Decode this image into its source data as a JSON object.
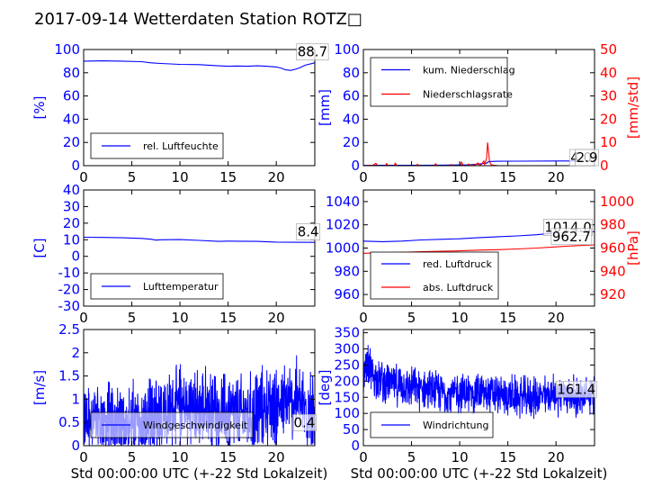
{
  "title": "2017-09-14 Wetterdaten Station ROTZ□",
  "colors": {
    "primary": "#0000ff",
    "secondary": "#ff0000",
    "axis": "#000000"
  },
  "chart_data": [
    {
      "id": "humidity",
      "type": "line",
      "xlim": [
        0,
        24
      ],
      "ylim": [
        0,
        100
      ],
      "xticks": [
        0,
        5,
        10,
        15,
        20
      ],
      "yticks": [
        0,
        20,
        40,
        60,
        80,
        100
      ],
      "ylabel": "[%]",
      "xlabel": "",
      "legend": {
        "position": "lower-left",
        "entries": [
          "rel. Luftfeuchte"
        ]
      },
      "annotations": [
        {
          "text": "88.7",
          "x": 22.2,
          "y": 94
        }
      ],
      "series": [
        {
          "name": "rel. Luftfeuchte",
          "color": "#0000ff",
          "axis": "left",
          "points": [
            [
              0,
              90
            ],
            [
              2,
              90.2
            ],
            [
              4,
              90
            ],
            [
              6,
              89.5
            ],
            [
              7,
              88.5
            ],
            [
              8,
              88
            ],
            [
              9,
              87.6
            ],
            [
              10,
              87.2
            ],
            [
              12,
              87
            ],
            [
              13,
              86.5
            ],
            [
              14,
              86
            ],
            [
              15,
              85.6
            ],
            [
              16,
              85.8
            ],
            [
              17,
              85.6
            ],
            [
              18,
              86
            ],
            [
              19,
              85.6
            ],
            [
              20,
              85
            ],
            [
              20.5,
              84
            ],
            [
              21,
              82.5
            ],
            [
              21.5,
              82
            ],
            [
              22,
              83
            ],
            [
              22.5,
              84.5
            ],
            [
              23,
              86.5
            ],
            [
              24,
              88.5
            ]
          ]
        }
      ]
    },
    {
      "id": "precipitation",
      "type": "line",
      "xlim": [
        0,
        24
      ],
      "ylim": [
        0,
        100
      ],
      "ylim2": [
        0,
        50
      ],
      "xticks": [
        0,
        5,
        10,
        15,
        20
      ],
      "yticks": [
        0,
        20,
        40,
        60,
        80,
        100
      ],
      "yticks2": [
        0,
        10,
        20,
        30,
        40,
        50
      ],
      "ylabel": "[mm]",
      "ylabel2": "[mm/std]",
      "xlabel": "",
      "legend": {
        "position": "upper-left",
        "entries": [
          "kum. Niederschlag",
          "Niederschlagsrate"
        ]
      },
      "annotations": [
        {
          "text": "4.0",
          "x": 21.5,
          "y": 4
        },
        {
          "text": "2.9",
          "x": 22.1,
          "y": 4
        }
      ],
      "series": [
        {
          "name": "kum. Niederschlag",
          "color": "#0000ff",
          "axis": "left",
          "points": [
            [
              0,
              0.2
            ],
            [
              2,
              0.3
            ],
            [
              4,
              0.3
            ],
            [
              6,
              0.4
            ],
            [
              8,
              0.5
            ],
            [
              10,
              0.6
            ],
            [
              11,
              0.8
            ],
            [
              12,
              1.4
            ],
            [
              12.8,
              2.2
            ],
            [
              13,
              3.6
            ],
            [
              14,
              3.8
            ],
            [
              16,
              3.9
            ],
            [
              20,
              4
            ],
            [
              24,
              4
            ]
          ]
        },
        {
          "name": "Niederschlagsrate",
          "color": "#ff0000",
          "axis": "right",
          "points": [
            [
              0,
              0
            ],
            [
              1,
              0.2
            ],
            [
              1.3,
              1
            ],
            [
              1.5,
              0
            ],
            [
              2.3,
              0
            ],
            [
              2.4,
              0.9
            ],
            [
              2.6,
              0
            ],
            [
              3.2,
              0
            ],
            [
              3.3,
              1.1
            ],
            [
              3.5,
              0
            ],
            [
              5.5,
              0
            ],
            [
              5.6,
              0.6
            ],
            [
              5.8,
              0
            ],
            [
              7.4,
              0
            ],
            [
              7.5,
              0.8
            ],
            [
              7.7,
              0
            ],
            [
              9,
              0
            ],
            [
              9.1,
              0.5
            ],
            [
              9.3,
              0
            ],
            [
              10,
              0
            ],
            [
              10.2,
              1.5
            ],
            [
              10.4,
              0
            ],
            [
              10.8,
              0
            ],
            [
              10.9,
              0.7
            ],
            [
              11.1,
              0
            ],
            [
              11.7,
              0.5
            ],
            [
              11.9,
              1.2
            ],
            [
              12.1,
              0
            ],
            [
              12.3,
              0.8
            ],
            [
              12.5,
              2
            ],
            [
              12.6,
              0.5
            ],
            [
              12.8,
              3.5
            ],
            [
              12.9,
              10
            ],
            [
              13,
              6
            ],
            [
              13.1,
              1.5
            ],
            [
              13.3,
              0.3
            ],
            [
              14,
              0
            ],
            [
              24,
              0
            ]
          ]
        }
      ]
    },
    {
      "id": "temperature",
      "type": "line",
      "xlim": [
        0,
        24
      ],
      "ylim": [
        -30,
        40
      ],
      "xticks": [
        0,
        5,
        10,
        15,
        20
      ],
      "yticks": [
        -30,
        -20,
        -10,
        0,
        10,
        20,
        30,
        40
      ],
      "ylabel": "[C]",
      "xlabel": "",
      "legend": {
        "position": "lower-left",
        "entries": [
          "Lufttemperatur"
        ]
      },
      "annotations": [
        {
          "text": "8.4",
          "x": 22.2,
          "y": 12
        }
      ],
      "series": [
        {
          "name": "Lufttemperatur",
          "color": "#0000ff",
          "axis": "left",
          "points": [
            [
              0,
              11.5
            ],
            [
              2,
              11.4
            ],
            [
              4,
              11.2
            ],
            [
              6,
              10.8
            ],
            [
              7,
              10.3
            ],
            [
              7.5,
              9.8
            ],
            [
              8,
              10
            ],
            [
              10,
              10.1
            ],
            [
              12,
              9.6
            ],
            [
              14,
              9
            ],
            [
              15,
              9.2
            ],
            [
              16,
              9.1
            ],
            [
              18,
              9
            ],
            [
              20,
              8.6
            ],
            [
              22,
              8.5
            ],
            [
              24,
              8.4
            ]
          ]
        }
      ]
    },
    {
      "id": "pressure",
      "type": "line",
      "xlim": [
        0,
        24
      ],
      "ylim": [
        950,
        1050
      ],
      "ylim2": [
        910,
        1010
      ],
      "xticks": [
        0,
        5,
        10,
        15,
        20
      ],
      "yticks": [
        960,
        980,
        1000,
        1020,
        1040
      ],
      "yticks2": [
        920,
        940,
        960,
        980,
        1000
      ],
      "ylabel": "",
      "ylabel2": "[hPa]",
      "xlabel": "",
      "legend": {
        "position": "lower-left",
        "entries": [
          "red. Luftdruck",
          "abs. Luftdruck"
        ]
      },
      "annotations": [
        {
          "text": "1014.0",
          "x": 18.8,
          "y": 1014
        },
        {
          "text": "962.7",
          "x": 19.6,
          "y": 1006
        }
      ],
      "series": [
        {
          "name": "red. Luftdruck",
          "color": "#0000ff",
          "axis": "left",
          "points": [
            [
              0,
              1006
            ],
            [
              2,
              1005.5
            ],
            [
              4,
              1006
            ],
            [
              6,
              1007
            ],
            [
              8,
              1007.5
            ],
            [
              10,
              1008
            ],
            [
              12,
              1009
            ],
            [
              14,
              1009.8
            ],
            [
              16,
              1010.5
            ],
            [
              18,
              1011.5
            ],
            [
              20,
              1013
            ],
            [
              22,
              1014.2
            ],
            [
              24,
              1014
            ]
          ]
        },
        {
          "name": "abs. Luftdruck",
          "color": "#ff0000",
          "axis": "right",
          "points": [
            [
              0,
              955.5
            ],
            [
              2,
              955.8
            ],
            [
              4,
              956.3
            ],
            [
              6,
              956.8
            ],
            [
              8,
              957.2
            ],
            [
              10,
              957.6
            ],
            [
              12,
              958.2
            ],
            [
              14,
              958.6
            ],
            [
              16,
              959.2
            ],
            [
              18,
              960
            ],
            [
              20,
              961
            ],
            [
              22,
              962
            ],
            [
              24,
              962.7
            ]
          ]
        }
      ]
    },
    {
      "id": "wind-speed",
      "type": "line",
      "xlim": [
        0,
        24
      ],
      "ylim": [
        0,
        2.5
      ],
      "xticks": [
        0,
        5,
        10,
        15,
        20
      ],
      "yticks": [
        0,
        0.5,
        1.0,
        1.5,
        2.0,
        2.5
      ],
      "ylabel": "[m/s]",
      "xlabel": "Std 00:00:00 UTC (+-22 Std Lokalzeit)",
      "legend": {
        "position": "lower-left",
        "entries": [
          "Windgeschwindigkeit"
        ]
      },
      "annotations": [
        {
          "text": "0.4",
          "x": 21.8,
          "y": 0.4
        }
      ],
      "series": [
        {
          "name": "Windgeschwindigkeit",
          "color": "#0000ff",
          "axis": "left",
          "noisy": true,
          "points": [
            [
              0,
              0.55
            ],
            [
              1,
              0.55
            ],
            [
              2,
              0.45
            ],
            [
              3,
              0.5
            ],
            [
              4,
              0.45
            ],
            [
              5,
              0.5
            ],
            [
              6,
              0.45
            ],
            [
              7,
              0.5
            ],
            [
              7.5,
              0.6
            ],
            [
              8,
              0.7
            ],
            [
              9,
              0.75
            ],
            [
              10,
              0.8
            ],
            [
              11,
              0.8
            ],
            [
              12,
              0.75
            ],
            [
              13,
              0.8
            ],
            [
              14,
              0.75
            ],
            [
              15,
              0.7
            ],
            [
              16,
              0.65
            ],
            [
              17,
              0.65
            ],
            [
              18,
              0.75
            ],
            [
              19,
              0.85
            ],
            [
              20,
              0.9
            ],
            [
              21,
              0.85
            ],
            [
              22,
              1.0
            ],
            [
              23,
              0.8
            ],
            [
              24,
              0.6
            ]
          ]
        }
      ]
    },
    {
      "id": "wind-direction",
      "type": "line",
      "xlim": [
        0,
        24
      ],
      "ylim": [
        0,
        360
      ],
      "xticks": [
        0,
        5,
        10,
        15,
        20
      ],
      "yticks": [
        0,
        50,
        100,
        150,
        200,
        250,
        300,
        350
      ],
      "ylabel": "[deg]",
      "xlabel": "Std 00:00:00 UTC (+-22 Std Lokalzeit)",
      "legend": {
        "position": "lower-left",
        "entries": [
          "Windrichtung"
        ]
      },
      "annotations": [
        {
          "text": "161.4",
          "x": 20.1,
          "y": 161
        }
      ],
      "series": [
        {
          "name": "Windrichtung",
          "color": "#0000ff",
          "axis": "left",
          "noisy": true,
          "points": [
            [
              0,
              200
            ],
            [
              0.5,
              250
            ],
            [
              1,
              220
            ],
            [
              2,
              200
            ],
            [
              3,
              190
            ],
            [
              4,
              185
            ],
            [
              5,
              180
            ],
            [
              6,
              175
            ],
            [
              7,
              170
            ],
            [
              8,
              165
            ],
            [
              9,
              160
            ],
            [
              10,
              165
            ],
            [
              11,
              160
            ],
            [
              12,
              165
            ],
            [
              13,
              160
            ],
            [
              14,
              155
            ],
            [
              15,
              155
            ],
            [
              16,
              150
            ],
            [
              17,
              150
            ],
            [
              18,
              150
            ],
            [
              19,
              155
            ],
            [
              20,
              160
            ],
            [
              21,
              160
            ],
            [
              22,
              150
            ],
            [
              23,
              150
            ],
            [
              24,
              155
            ]
          ]
        }
      ]
    }
  ]
}
